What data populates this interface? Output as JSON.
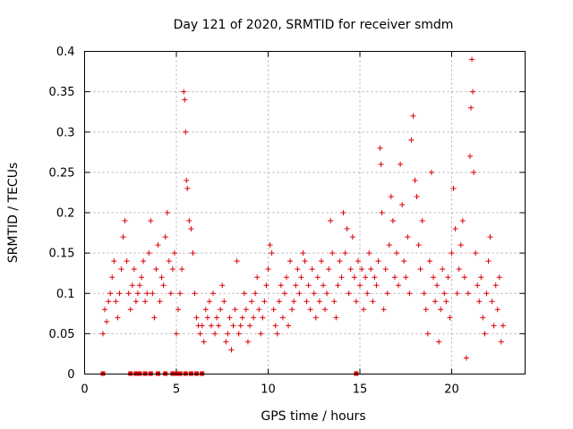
{
  "chart_data": {
    "type": "scatter",
    "title": "Day 121 of 2020, SRMTID for receiver smdm",
    "xlabel": "GPS time / hours",
    "ylabel": "SRMTID / TECUs",
    "xlim": [
      0,
      24
    ],
    "ylim": [
      0,
      0.4
    ],
    "xticks": [
      0,
      5,
      10,
      15,
      20
    ],
    "xtick_labels": [
      "0",
      "5",
      "10",
      "15",
      "20"
    ],
    "yticks": [
      0,
      0.05,
      0.1,
      0.15,
      0.2,
      0.25,
      0.3,
      0.35,
      0.4
    ],
    "ytick_labels": [
      "0",
      "0.05",
      "0.1",
      "0.15",
      "0.2",
      "0.25",
      "0.3",
      "0.35",
      "0.4"
    ],
    "grid": true,
    "marker": "plus",
    "color": "#dd0000",
    "series": [
      {
        "name": "SRMTID",
        "points": [
          [
            1.0,
            0.05
          ],
          [
            1.1,
            0.08
          ],
          [
            1.2,
            0.065
          ],
          [
            1.3,
            0.09
          ],
          [
            1.4,
            0.1
          ],
          [
            1.5,
            0.12
          ],
          [
            1.6,
            0.14
          ],
          [
            1.7,
            0.09
          ],
          [
            1.8,
            0.07
          ],
          [
            1.9,
            0.1
          ],
          [
            2.0,
            0.13
          ],
          [
            2.1,
            0.17
          ],
          [
            2.2,
            0.19
          ],
          [
            2.3,
            0.14
          ],
          [
            2.4,
            0.1
          ],
          [
            2.5,
            0.08
          ],
          [
            2.6,
            0.11
          ],
          [
            2.7,
            0.13
          ],
          [
            2.8,
            0.09
          ],
          [
            2.9,
            0.1
          ],
          [
            3.0,
            0.11
          ],
          [
            3.1,
            0.12
          ],
          [
            3.2,
            0.14
          ],
          [
            3.3,
            0.09
          ],
          [
            3.4,
            0.1
          ],
          [
            3.5,
            0.15
          ],
          [
            3.6,
            0.19
          ],
          [
            3.7,
            0.1
          ],
          [
            3.8,
            0.07
          ],
          [
            3.9,
            0.13
          ],
          [
            4.0,
            0.16
          ],
          [
            4.1,
            0.09
          ],
          [
            4.2,
            0.12
          ],
          [
            4.3,
            0.11
          ],
          [
            4.4,
            0.17
          ],
          [
            4.5,
            0.2
          ],
          [
            4.6,
            0.14
          ],
          [
            4.7,
            0.1
          ],
          [
            4.8,
            0.13
          ],
          [
            4.9,
            0.15
          ],
          [
            5.0,
            0.05
          ],
          [
            5.1,
            0.08
          ],
          [
            5.2,
            0.1
          ],
          [
            5.3,
            0.13
          ],
          [
            5.4,
            0.35
          ],
          [
            5.45,
            0.34
          ],
          [
            5.5,
            0.3
          ],
          [
            5.55,
            0.24
          ],
          [
            5.6,
            0.23
          ],
          [
            5.7,
            0.19
          ],
          [
            5.8,
            0.18
          ],
          [
            5.9,
            0.15
          ],
          [
            6.0,
            0.1
          ],
          [
            6.1,
            0.07
          ],
          [
            6.2,
            0.06
          ],
          [
            6.3,
            0.05
          ],
          [
            6.4,
            0.06
          ],
          [
            6.5,
            0.04
          ],
          [
            6.6,
            0.08
          ],
          [
            6.7,
            0.07
          ],
          [
            6.8,
            0.09
          ],
          [
            6.9,
            0.06
          ],
          [
            7.0,
            0.1
          ],
          [
            7.1,
            0.05
          ],
          [
            7.2,
            0.07
          ],
          [
            7.3,
            0.06
          ],
          [
            7.4,
            0.08
          ],
          [
            7.5,
            0.11
          ],
          [
            7.6,
            0.09
          ],
          [
            7.7,
            0.04
          ],
          [
            7.8,
            0.05
          ],
          [
            7.9,
            0.07
          ],
          [
            8.0,
            0.03
          ],
          [
            8.1,
            0.06
          ],
          [
            8.2,
            0.08
          ],
          [
            8.3,
            0.14
          ],
          [
            8.4,
            0.05
          ],
          [
            8.5,
            0.06
          ],
          [
            8.6,
            0.07
          ],
          [
            8.7,
            0.1
          ],
          [
            8.8,
            0.08
          ],
          [
            8.9,
            0.04
          ],
          [
            9.0,
            0.06
          ],
          [
            9.1,
            0.09
          ],
          [
            9.2,
            0.07
          ],
          [
            9.3,
            0.1
          ],
          [
            9.4,
            0.12
          ],
          [
            9.5,
            0.08
          ],
          [
            9.6,
            0.05
          ],
          [
            9.7,
            0.07
          ],
          [
            9.8,
            0.09
          ],
          [
            9.9,
            0.11
          ],
          [
            10.0,
            0.13
          ],
          [
            10.1,
            0.16
          ],
          [
            10.2,
            0.15
          ],
          [
            10.3,
            0.08
          ],
          [
            10.4,
            0.06
          ],
          [
            10.5,
            0.05
          ],
          [
            10.6,
            0.09
          ],
          [
            10.7,
            0.11
          ],
          [
            10.8,
            0.07
          ],
          [
            10.9,
            0.1
          ],
          [
            11.0,
            0.12
          ],
          [
            11.1,
            0.06
          ],
          [
            11.2,
            0.14
          ],
          [
            11.3,
            0.08
          ],
          [
            11.4,
            0.09
          ],
          [
            11.5,
            0.11
          ],
          [
            11.6,
            0.13
          ],
          [
            11.7,
            0.1
          ],
          [
            11.8,
            0.12
          ],
          [
            11.9,
            0.15
          ],
          [
            12.0,
            0.14
          ],
          [
            12.1,
            0.09
          ],
          [
            12.2,
            0.11
          ],
          [
            12.3,
            0.08
          ],
          [
            12.4,
            0.13
          ],
          [
            12.5,
            0.1
          ],
          [
            12.6,
            0.07
          ],
          [
            12.7,
            0.12
          ],
          [
            12.8,
            0.09
          ],
          [
            12.9,
            0.14
          ],
          [
            13.0,
            0.11
          ],
          [
            13.1,
            0.08
          ],
          [
            13.2,
            0.1
          ],
          [
            13.3,
            0.13
          ],
          [
            13.4,
            0.19
          ],
          [
            13.5,
            0.15
          ],
          [
            13.6,
            0.09
          ],
          [
            13.7,
            0.07
          ],
          [
            13.8,
            0.11
          ],
          [
            13.9,
            0.14
          ],
          [
            14.0,
            0.12
          ],
          [
            14.1,
            0.2
          ],
          [
            14.2,
            0.15
          ],
          [
            14.3,
            0.18
          ],
          [
            14.4,
            0.1
          ],
          [
            14.5,
            0.13
          ],
          [
            14.6,
            0.17
          ],
          [
            14.7,
            0.12
          ],
          [
            14.8,
            0.09
          ],
          [
            14.9,
            0.14
          ],
          [
            15.0,
            0.11
          ],
          [
            15.1,
            0.13
          ],
          [
            15.2,
            0.08
          ],
          [
            15.3,
            0.12
          ],
          [
            15.4,
            0.1
          ],
          [
            15.5,
            0.15
          ],
          [
            15.6,
            0.13
          ],
          [
            15.7,
            0.09
          ],
          [
            15.8,
            0.12
          ],
          [
            15.9,
            0.11
          ],
          [
            16.0,
            0.14
          ],
          [
            16.1,
            0.28
          ],
          [
            16.15,
            0.26
          ],
          [
            16.2,
            0.2
          ],
          [
            16.3,
            0.08
          ],
          [
            16.4,
            0.13
          ],
          [
            16.5,
            0.1
          ],
          [
            16.6,
            0.16
          ],
          [
            16.7,
            0.22
          ],
          [
            16.8,
            0.19
          ],
          [
            16.9,
            0.12
          ],
          [
            17.0,
            0.15
          ],
          [
            17.1,
            0.11
          ],
          [
            17.2,
            0.26
          ],
          [
            17.3,
            0.21
          ],
          [
            17.4,
            0.14
          ],
          [
            17.5,
            0.12
          ],
          [
            17.6,
            0.17
          ],
          [
            17.7,
            0.1
          ],
          [
            17.8,
            0.29
          ],
          [
            17.9,
            0.32
          ],
          [
            18.0,
            0.24
          ],
          [
            18.1,
            0.22
          ],
          [
            18.2,
            0.16
          ],
          [
            18.3,
            0.13
          ],
          [
            18.4,
            0.19
          ],
          [
            18.5,
            0.1
          ],
          [
            18.6,
            0.08
          ],
          [
            18.7,
            0.05
          ],
          [
            18.8,
            0.14
          ],
          [
            18.9,
            0.25
          ],
          [
            19.0,
            0.12
          ],
          [
            19.1,
            0.09
          ],
          [
            19.2,
            0.11
          ],
          [
            19.3,
            0.04
          ],
          [
            19.4,
            0.08
          ],
          [
            19.5,
            0.13
          ],
          [
            19.6,
            0.1
          ],
          [
            19.7,
            0.09
          ],
          [
            19.8,
            0.12
          ],
          [
            19.9,
            0.07
          ],
          [
            20.0,
            0.15
          ],
          [
            20.1,
            0.23
          ],
          [
            20.2,
            0.18
          ],
          [
            20.3,
            0.1
          ],
          [
            20.4,
            0.13
          ],
          [
            20.5,
            0.16
          ],
          [
            20.6,
            0.19
          ],
          [
            20.7,
            0.12
          ],
          [
            20.8,
            0.02
          ],
          [
            20.9,
            0.1
          ],
          [
            21.0,
            0.27
          ],
          [
            21.05,
            0.33
          ],
          [
            21.1,
            0.39
          ],
          [
            21.15,
            0.35
          ],
          [
            21.2,
            0.25
          ],
          [
            21.3,
            0.15
          ],
          [
            21.4,
            0.11
          ],
          [
            21.5,
            0.09
          ],
          [
            21.6,
            0.12
          ],
          [
            21.7,
            0.07
          ],
          [
            21.8,
            0.05
          ],
          [
            21.9,
            0.1
          ],
          [
            22.0,
            0.14
          ],
          [
            22.1,
            0.17
          ],
          [
            22.2,
            0.09
          ],
          [
            22.3,
            0.06
          ],
          [
            22.4,
            0.11
          ],
          [
            22.5,
            0.08
          ],
          [
            22.6,
            0.12
          ],
          [
            22.7,
            0.04
          ],
          [
            22.8,
            0.06
          ]
        ],
        "zero_points": [
          1.0,
          2.5,
          2.8,
          3.0,
          3.3,
          3.6,
          4.0,
          4.4,
          4.8,
          4.9,
          5.0,
          5.1,
          5.2,
          5.5,
          5.8,
          6.1,
          6.4,
          14.8
        ]
      }
    ]
  }
}
